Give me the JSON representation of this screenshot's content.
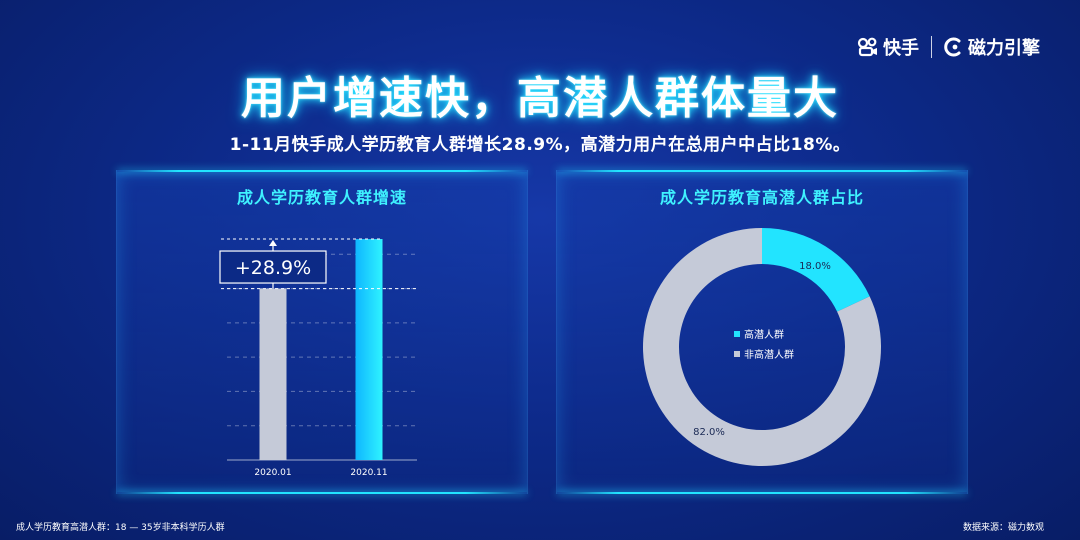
{
  "brand": {
    "kuaishou_label": "快手",
    "cili_label": "磁力引擎"
  },
  "header": {
    "title": "用户增速快，高潜人群体量大",
    "subtitle": "1-11月快手成人学历教育人群增长28.9%，高潜力用户在总用户中占比18%。"
  },
  "colors": {
    "accent_cyan": "#22e4ff",
    "bar_grey": "#c5cad8",
    "bg_navy": "#0d2a8a"
  },
  "chart_data": [
    {
      "type": "bar",
      "title": "成人学历教育人群增速",
      "categories": [
        "2020.01",
        "2020.11"
      ],
      "values": [
        100,
        128.9
      ],
      "ylim": [
        0,
        140
      ],
      "grid": true,
      "annotation": "+28.9%",
      "xlabel": "",
      "ylabel": ""
    },
    {
      "type": "pie",
      "title": "成人学历教育高潜人群占比",
      "donut": true,
      "slices": [
        {
          "label": "高潜人群",
          "value": 18.0,
          "value_label": "18.0%",
          "color": "#22e4ff"
        },
        {
          "label": "非高潜人群",
          "value": 82.0,
          "value_label": "82.0%",
          "color": "#c5cad8"
        }
      ],
      "legend_position": "center"
    }
  ],
  "footer": {
    "note_left": "成人学历教育高潜人群：18 — 35岁非本科学历人群",
    "note_right": "数据来源：磁力数观"
  }
}
